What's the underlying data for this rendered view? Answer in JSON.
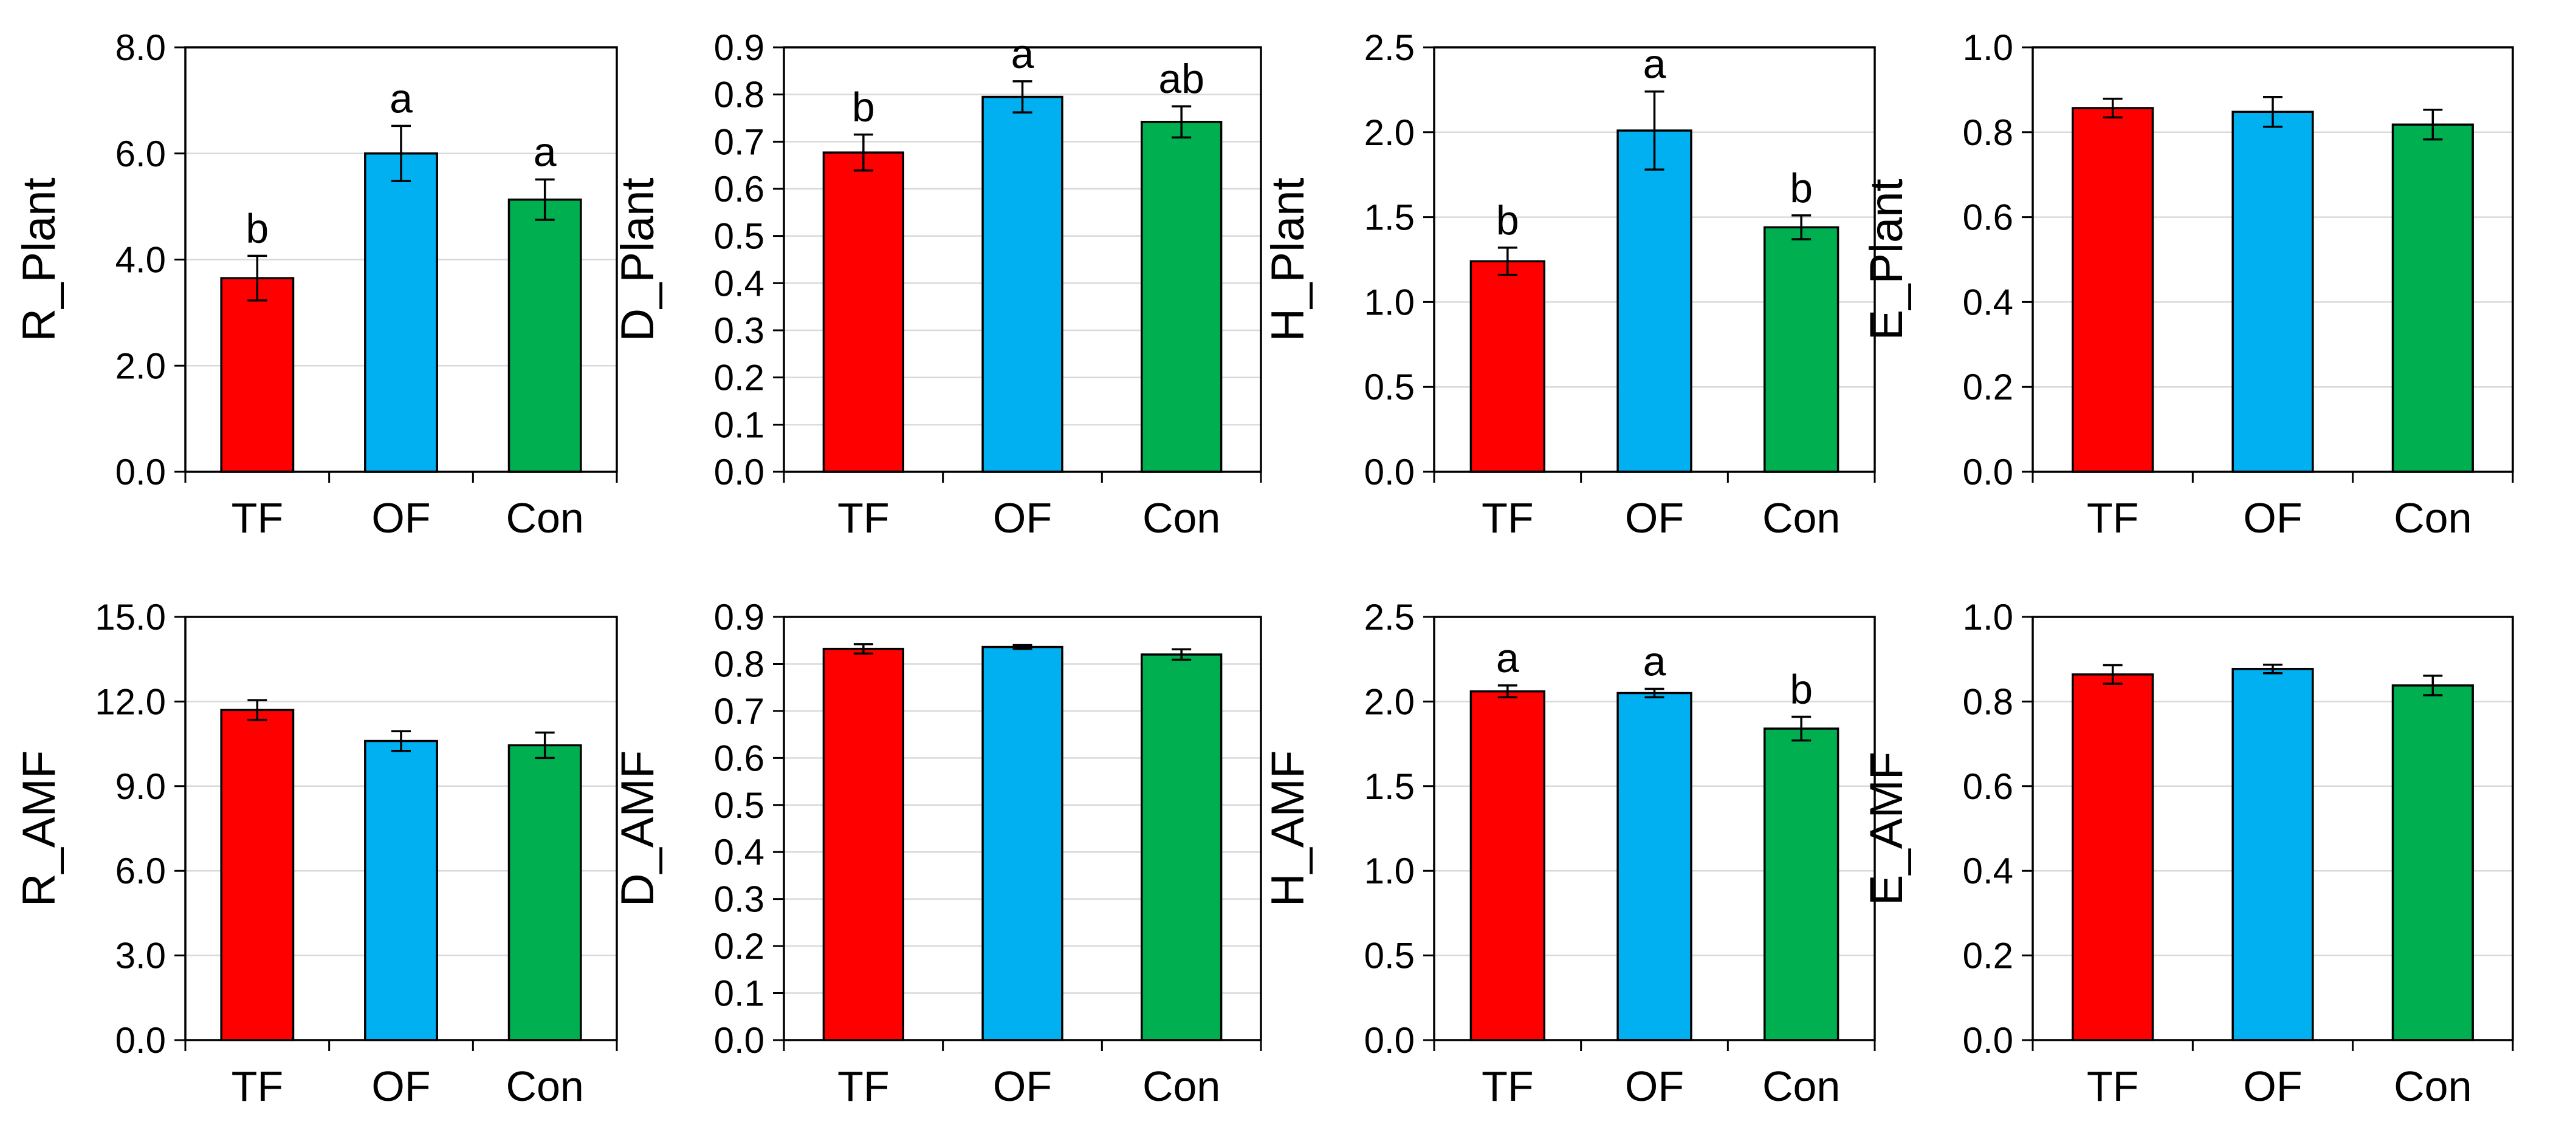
{
  "colors": {
    "TF": "#ff0000",
    "OF": "#00b0f0",
    "Con": "#00b050",
    "axis": "#000000",
    "grid": "#d9d9d9"
  },
  "chart_data": [
    {
      "id": "R_Plant",
      "type": "bar",
      "ylabel": "R_Plant",
      "categories": [
        "TF",
        "OF",
        "Con"
      ],
      "values": [
        3.65,
        6.0,
        5.13
      ],
      "errors": [
        0.42,
        0.52,
        0.38
      ],
      "ylim": [
        0,
        8
      ],
      "yticks": [
        "0.0",
        "2.0",
        "4.0",
        "6.0",
        "8.0"
      ],
      "letters": [
        "b",
        "a",
        "a"
      ]
    },
    {
      "id": "D_Plant",
      "type": "bar",
      "ylabel": "D_Plant",
      "categories": [
        "TF",
        "OF",
        "Con"
      ],
      "values": [
        0.677,
        0.795,
        0.742
      ],
      "errors": [
        0.038,
        0.033,
        0.033
      ],
      "ylim": [
        0,
        0.9
      ],
      "yticks": [
        "0.0",
        "0.1",
        "0.2",
        "0.3",
        "0.4",
        "0.5",
        "0.6",
        "0.7",
        "0.8",
        "0.9"
      ],
      "letters": [
        "b",
        "a",
        "ab"
      ]
    },
    {
      "id": "H_Plant",
      "type": "bar",
      "ylabel": "H_Plant",
      "categories": [
        "TF",
        "OF",
        "Con"
      ],
      "values": [
        1.24,
        2.01,
        1.44
      ],
      "errors": [
        0.08,
        0.23,
        0.07
      ],
      "ylim": [
        0,
        2.5
      ],
      "yticks": [
        "0.0",
        "0.5",
        "1.0",
        "1.5",
        "2.0",
        "2.5"
      ],
      "letters": [
        "b",
        "a",
        "b"
      ]
    },
    {
      "id": "E_Plant",
      "type": "bar",
      "ylabel": "E_Plant",
      "categories": [
        "TF",
        "OF",
        "Con"
      ],
      "values": [
        0.857,
        0.848,
        0.818
      ],
      "errors": [
        0.022,
        0.035,
        0.035
      ],
      "ylim": [
        0,
        1
      ],
      "yticks": [
        "0.0",
        "0.2",
        "0.4",
        "0.6",
        "0.8",
        "1.0"
      ],
      "letters": [
        "",
        "",
        ""
      ]
    },
    {
      "id": "R_AMF",
      "type": "bar",
      "ylabel": "R_AMF",
      "categories": [
        "TF",
        "OF",
        "Con"
      ],
      "values": [
        11.7,
        10.6,
        10.45
      ],
      "errors": [
        0.35,
        0.35,
        0.45
      ],
      "ylim": [
        0,
        15
      ],
      "yticks": [
        "0.0",
        "3.0",
        "6.0",
        "9.0",
        "12.0",
        "15.0"
      ],
      "letters": [
        "",
        "",
        ""
      ]
    },
    {
      "id": "D_AMF",
      "type": "bar",
      "ylabel": "D_AMF",
      "categories": [
        "TF",
        "OF",
        "Con"
      ],
      "values": [
        0.832,
        0.836,
        0.82
      ],
      "errors": [
        0.01,
        0.004,
        0.011
      ],
      "ylim": [
        0,
        0.9
      ],
      "yticks": [
        "0.0",
        "0.1",
        "0.2",
        "0.3",
        "0.4",
        "0.5",
        "0.6",
        "0.7",
        "0.8",
        "0.9"
      ],
      "letters": [
        "",
        "",
        ""
      ]
    },
    {
      "id": "H_AMF",
      "type": "bar",
      "ylabel": "H_AMF",
      "categories": [
        "TF",
        "OF",
        "Con"
      ],
      "values": [
        2.06,
        2.05,
        1.84
      ],
      "errors": [
        0.035,
        0.025,
        0.07
      ],
      "ylim": [
        0,
        2.5
      ],
      "yticks": [
        "0.0",
        "0.5",
        "1.0",
        "1.5",
        "2.0",
        "2.5"
      ],
      "letters": [
        "a",
        "a",
        "b"
      ]
    },
    {
      "id": "E_AMF",
      "type": "bar",
      "ylabel": "E_AMF",
      "categories": [
        "TF",
        "OF",
        "Con"
      ],
      "values": [
        0.864,
        0.877,
        0.838
      ],
      "errors": [
        0.022,
        0.01,
        0.023
      ],
      "ylim": [
        0,
        1
      ],
      "yticks": [
        "0.0",
        "0.2",
        "0.4",
        "0.6",
        "0.8",
        "1.0"
      ],
      "letters": [
        "",
        "",
        ""
      ]
    }
  ]
}
